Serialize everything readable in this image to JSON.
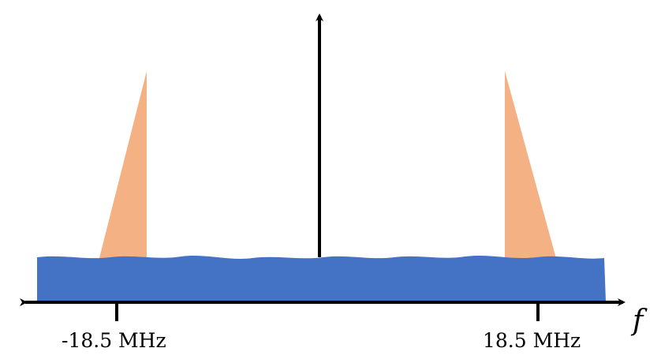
{
  "diagram": {
    "axis_label": "f",
    "left_tick_label": "-18.5 MHz",
    "right_tick_label": "18.5 MHz"
  },
  "colors": {
    "noise_band": "#4472c4",
    "signal_spectrum": "#f4b183",
    "axes": "#000000"
  }
}
